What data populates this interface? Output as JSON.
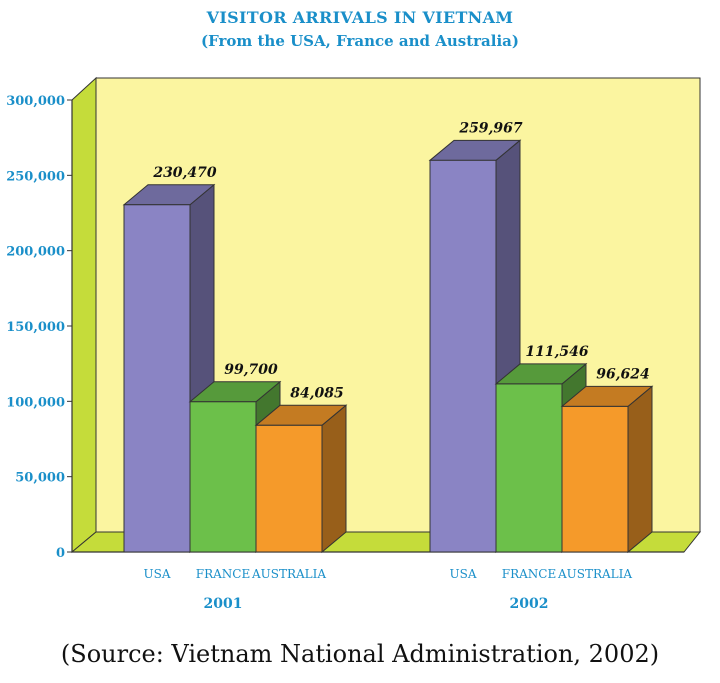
{
  "chart_data": {
    "type": "bar",
    "title": "VISITOR ARRIVALS IN VIETNAM",
    "subtitle": "(From the USA, France and Australia)",
    "groups": [
      "2001",
      "2002"
    ],
    "categories": [
      "USA",
      "FRANCE",
      "AUSTRALIA"
    ],
    "series": [
      {
        "group": "2001",
        "values": [
          230470,
          99700,
          84085
        ],
        "labels": [
          "230,470",
          "99,700",
          "84,085"
        ]
      },
      {
        "group": "2002",
        "values": [
          259967,
          111546,
          96624
        ],
        "labels": [
          "259,967",
          "111,546",
          "96,624"
        ]
      }
    ],
    "ylim": [
      0,
      300000
    ],
    "yticks": [
      0,
      50000,
      100000,
      150000,
      200000,
      250000,
      300000
    ],
    "ytick_labels": [
      "0",
      "50,000",
      "100,000",
      "150,000",
      "200,000",
      "250,000",
      "300,000"
    ],
    "colors": {
      "usa": "#8a84c4",
      "france": "#6cc04a",
      "australia": "#f59a2a",
      "wall": "#fbf5a0",
      "floor": "#c5dc3a",
      "text": "#1a8fc9"
    }
  },
  "source": "(Source: Vietnam National Administration, 2002)"
}
